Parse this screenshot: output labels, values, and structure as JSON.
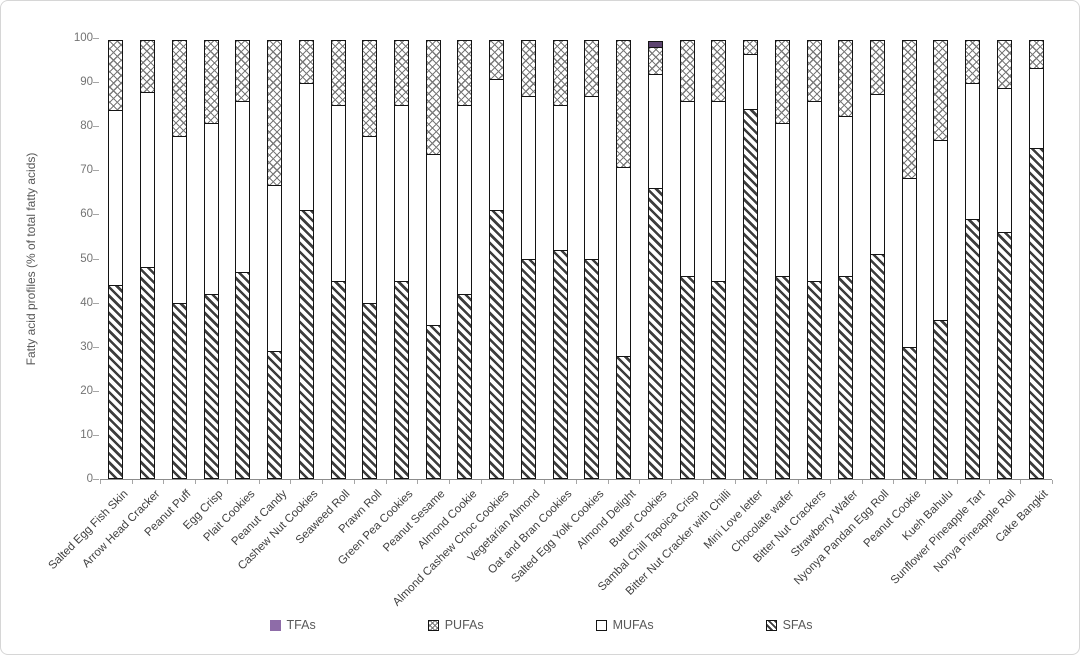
{
  "chart_data": {
    "type": "bar",
    "subtype": "stacked-percent",
    "title": "",
    "xlabel": "",
    "ylabel": "Fatty acid profiles (% of total fatty acids)",
    "ylim": [
      0,
      100
    ],
    "ytick_step": 10,
    "ytick_labels": [
      "0",
      "10",
      "20",
      "30",
      "40",
      "50",
      "60",
      "70",
      "80",
      "90",
      "100"
    ],
    "grid": false,
    "legend_position": "bottom",
    "legend_order": [
      "TFAs",
      "PUFAs",
      "MUFAs",
      "SFAs"
    ],
    "categories": [
      "Salted Egg Fish Skin",
      "Arrow Head Cracker",
      "Peanut Puff",
      "Egg Crisp",
      "Plait Cookies",
      "Peanut Candy",
      "Cashew Nut Cookies",
      "Seaweed Roll",
      "Prawn Roll",
      "Green Pea Cookies",
      "Peanut Sesame",
      "Almond Cookie",
      "Almond Cashew Choc Cookies",
      "Vegetarian Almond",
      "Oat and Bran Cookies",
      "Salted Egg Yolk Cookies",
      "Almond Delight",
      "Butter Cookies",
      "Sambal Chill Tapoica Crisp",
      "Bitter Nut Cracker with Chilli",
      "Mini Love letter",
      "Chocolate wafer",
      "Bitter Nut Crackers",
      "Strawberry Wafer",
      "Nyonya Pandan Egg Roll",
      "Peanut Cookie",
      "Kueh Bahulu",
      "Sunflower Pineapple Tart",
      "Nonya Pineapple Roll",
      "Cake Bangkit"
    ],
    "series": [
      {
        "name": "SFAs",
        "pattern": "diagonal-hatch",
        "color": "#3d3d3d",
        "values": [
          44,
          48,
          40,
          42,
          47,
          29,
          61,
          45,
          40,
          45,
          35,
          42,
          61,
          50,
          52,
          50,
          28,
          66,
          46,
          45,
          84,
          46,
          45,
          46,
          51,
          30,
          36,
          59,
          56,
          75
        ]
      },
      {
        "name": "MUFAs",
        "pattern": "solid-white",
        "color": "#ffffff",
        "values": [
          40,
          40,
          38,
          39,
          39,
          38,
          29,
          40,
          38,
          40,
          39,
          43,
          30,
          37,
          33,
          37,
          43,
          26,
          40,
          41,
          12.5,
          35,
          41,
          36.5,
          36.5,
          38.5,
          41,
          31,
          33,
          18.5
        ]
      },
      {
        "name": "PUFAs",
        "pattern": "diamond-crosshatch",
        "color": "#7a7a7a",
        "values": [
          16,
          12,
          22,
          19,
          14,
          33,
          10,
          15,
          22,
          15,
          26,
          15,
          9,
          13,
          15,
          13,
          29,
          6.5,
          14,
          14,
          3.5,
          19,
          14,
          17.5,
          12.5,
          31.5,
          23,
          10,
          11,
          6.5
        ]
      },
      {
        "name": "TFAs",
        "pattern": "solid-purple",
        "color": "#8e6ca8",
        "values": [
          0,
          0,
          0,
          0,
          0,
          0,
          0,
          0,
          0,
          0,
          0,
          0,
          0,
          0,
          0,
          0,
          0,
          1.5,
          0,
          0,
          0,
          0,
          0,
          0,
          0,
          0,
          0,
          0,
          0,
          0
        ]
      }
    ]
  }
}
